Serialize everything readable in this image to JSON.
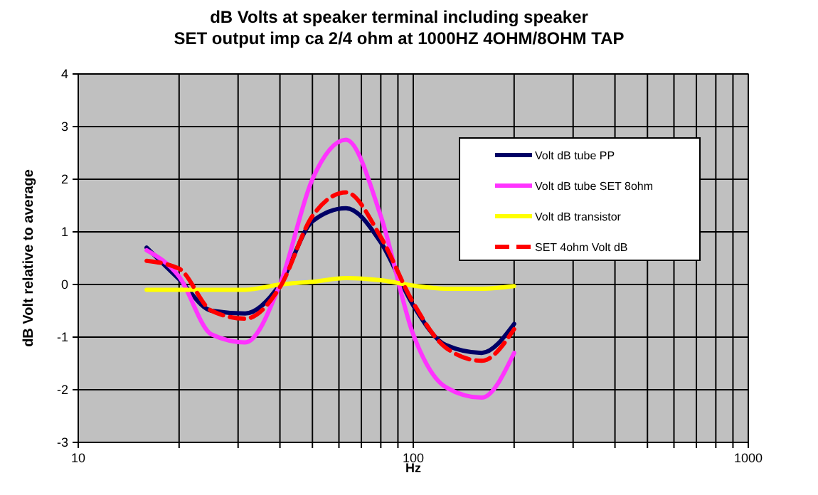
{
  "chart_data": {
    "type": "line",
    "title": "dB Volts at speaker terminal including speaker",
    "subtitle": "SET output imp ca 2/4 ohm at 1000HZ 4OHM/8OHM TAP",
    "xlabel": "Hz",
    "ylabel": "dB Volt relative to average",
    "log": "x",
    "grid": true,
    "legend": "top right",
    "xlim": [
      10,
      1000
    ],
    "ylim": [
      -3,
      4
    ],
    "xticks": [
      10,
      {
        "value": 20,
        "label": null
      },
      {
        "value": 30,
        "label": null
      },
      {
        "value": 40,
        "label": null
      },
      {
        "value": 50,
        "label": null
      },
      {
        "value": 60,
        "label": null
      },
      {
        "value": 70,
        "label": null
      },
      {
        "value": 80,
        "label": null
      },
      {
        "value": 90,
        "label": null
      },
      100,
      {
        "value": 200,
        "label": null
      },
      {
        "value": 300,
        "label": null
      },
      {
        "value": 400,
        "label": null
      },
      {
        "value": 500,
        "label": null
      },
      {
        "value": 600,
        "label": null
      },
      {
        "value": 700,
        "label": null
      },
      {
        "value": 800,
        "label": null
      },
      {
        "value": 900,
        "label": null
      },
      1000
    ],
    "yticks": [
      -3,
      -2,
      -1,
      0,
      1,
      2,
      3,
      4
    ],
    "x": [
      16,
      20,
      25,
      31.5,
      40,
      50,
      63,
      80,
      100,
      125,
      160,
      200
    ],
    "series": [
      {
        "name": "Volt dB tube PP",
        "color": "#000066",
        "values": [
          0.7,
          0.1,
          -0.5,
          -0.55,
          0,
          1.2,
          1.45,
          0.8,
          -0.4,
          -1.15,
          -1.3,
          -0.75
        ]
      },
      {
        "name": "Volt dB tube SET 8ohm",
        "color": "#ff33ff",
        "values": [
          0.65,
          0.15,
          -0.95,
          -1.1,
          0,
          2.0,
          2.75,
          1.3,
          -0.95,
          -1.95,
          -2.15,
          -1.3
        ]
      },
      {
        "name": "Volt dB transistor",
        "color": "#ffff00",
        "values": [
          -0.1,
          -0.1,
          -0.1,
          -0.1,
          0,
          0.05,
          0.12,
          0.08,
          -0.02,
          -0.08,
          -0.08,
          -0.03
        ]
      },
      {
        "name": "SET 4ohm Volt dB",
        "color": "#ff0000",
        "line_style": "dashed",
        "values": [
          0.45,
          0.3,
          -0.5,
          -0.65,
          -0.05,
          1.3,
          1.75,
          0.9,
          -0.35,
          -1.2,
          -1.45,
          -0.85
        ]
      }
    ]
  }
}
